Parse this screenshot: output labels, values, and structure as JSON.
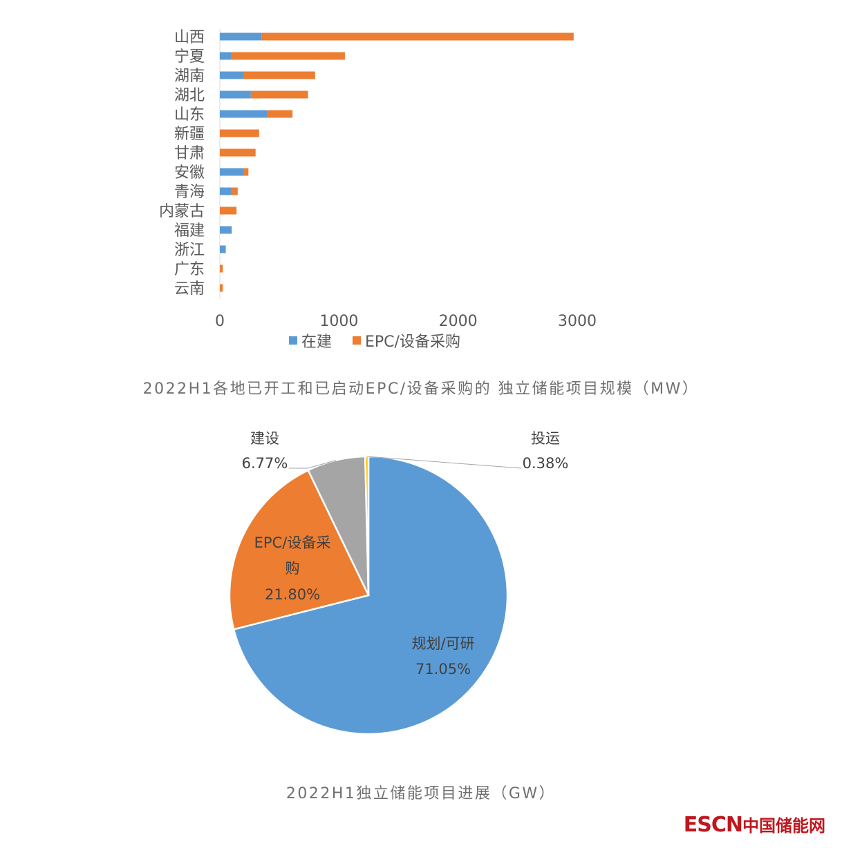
{
  "chart_data": [
    {
      "type": "bar",
      "orientation": "horizontal",
      "stacked": true,
      "title": "2022H1各地已开工和已启动EPC/设备采购的 独立储能项目规模（MW）",
      "categories": [
        "山西",
        "宁夏",
        "湖南",
        "湖北",
        "山东",
        "新疆",
        "甘肃",
        "安徽",
        "青海",
        "内蒙古",
        "福建",
        "浙江",
        "广东",
        "云南"
      ],
      "series": [
        {
          "name": "在建",
          "color": "#5b9bd5",
          "values": [
            350,
            100,
            200,
            260,
            400,
            0,
            0,
            200,
            100,
            0,
            100,
            50,
            0,
            0
          ]
        },
        {
          "name": "EPC/设备采购",
          "color": "#ed7d31",
          "values": [
            2620,
            950,
            600,
            480,
            210,
            330,
            300,
            40,
            50,
            140,
            0,
            0,
            25,
            25
          ]
        }
      ],
      "xticks": [
        "0",
        "1000",
        "2000",
        "3000"
      ],
      "xlim": [
        0,
        3000
      ],
      "grid": false,
      "legend_position": "bottom"
    },
    {
      "type": "pie",
      "title": "2022H1独立储能项目进展（GW）",
      "slices": [
        {
          "label": "规划/可研",
          "value": 71.05,
          "pct_label": "71.05%",
          "color": "#5b9bd5"
        },
        {
          "label": "EPC/设备采购",
          "label_line2": "购",
          "label_line1": "EPC/设备采",
          "value": 21.8,
          "pct_label": "21.80%",
          "color": "#ed7d31"
        },
        {
          "label": "建设",
          "value": 6.77,
          "pct_label": "6.77%",
          "color": "#a5a5a5"
        },
        {
          "label": "投运",
          "value": 0.38,
          "pct_label": "0.38%",
          "color": "#ffc000"
        }
      ]
    }
  ],
  "logo": {
    "escn": "ESCN",
    "cn": "中国储能网"
  }
}
